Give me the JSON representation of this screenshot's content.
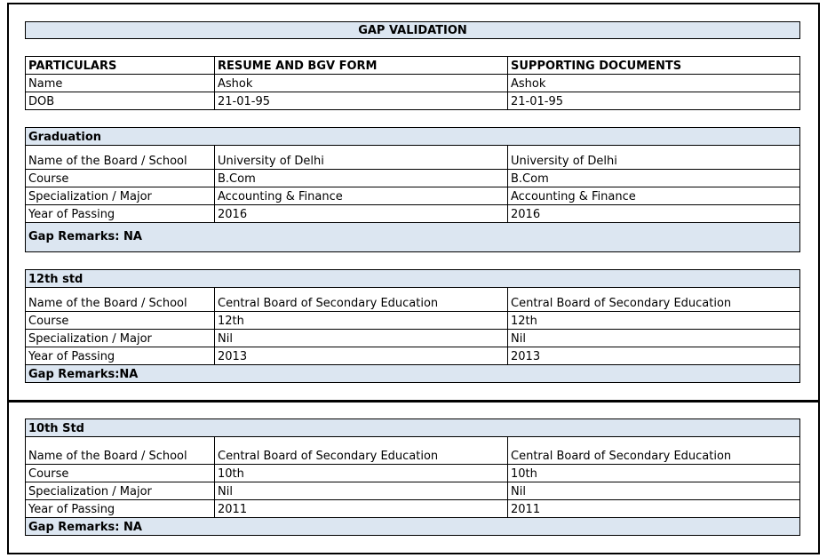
{
  "title": "GAP VALIDATION",
  "header": {
    "columns": [
      "PARTICULARS",
      "RESUME AND BGV FORM",
      "SUPPORTING DOCUMENTS"
    ],
    "rows": [
      [
        "Name",
        "Ashok",
        "Ashok"
      ],
      [
        "DOB",
        "21-01-95",
        "21-01-95"
      ]
    ]
  },
  "sections": [
    {
      "title": "Graduation",
      "rows": [
        [
          "Name of the Board / School",
          "University of Delhi",
          "University of Delhi"
        ],
        [
          "Course",
          "B.Com",
          "B.Com"
        ],
        [
          "Specialization / Major",
          "Accounting & Finance",
          "Accounting & Finance"
        ],
        [
          "Year of Passing",
          "2016",
          "2016"
        ]
      ],
      "remarks": "Gap Remarks: NA"
    },
    {
      "title": "12th std",
      "rows": [
        [
          "Name of the Board / School",
          "Central Board of Secondary Education",
          "Central Board of Secondary Education"
        ],
        [
          "Course",
          "12th",
          "12th"
        ],
        [
          "Specialization / Major",
          "Nil",
          "Nil"
        ],
        [
          "Year of Passing",
          "2013",
          "2013"
        ]
      ],
      "remarks": "Gap Remarks:NA"
    },
    {
      "title": "10th Std",
      "rows": [
        [
          "Name of the Board / School",
          "Central Board of Secondary Education",
          "Central Board of Secondary Education"
        ],
        [
          "Course",
          "10th",
          "10th"
        ],
        [
          "Specialization / Major",
          "Nil",
          "Nil"
        ],
        [
          "Year of Passing",
          "2011",
          "2011"
        ]
      ],
      "remarks": "Gap Remarks: NA"
    }
  ]
}
